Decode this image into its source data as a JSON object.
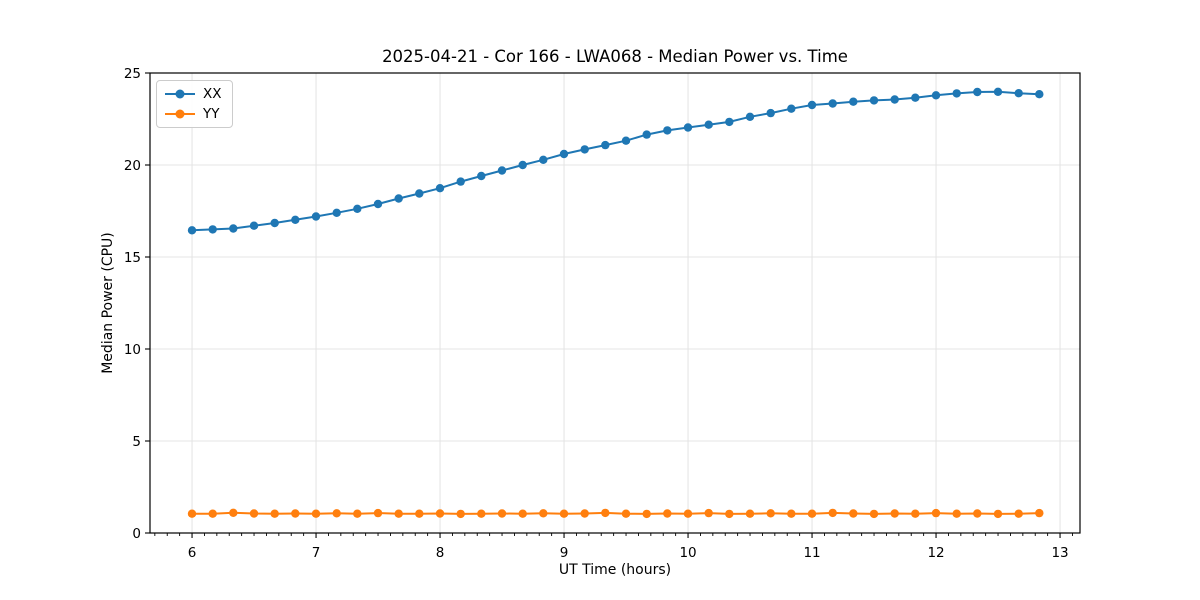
{
  "chart_data": {
    "type": "line",
    "title": "2025-04-21 - Cor 166 - LWA068 - Median Power vs. Time",
    "xlabel": "UT Time (hours)",
    "ylabel": "Median Power (CPU)",
    "xlim": [
      5.661,
      13.161
    ],
    "ylim": [
      0,
      25
    ],
    "x_major_ticks": [
      6,
      7,
      8,
      9,
      10,
      11,
      12,
      13
    ],
    "x_minor_tick_step": 0.1,
    "y_major_ticks": [
      0,
      5,
      10,
      15,
      20,
      25
    ],
    "grid": "major",
    "grid_color": "#e4e4e4",
    "legend_position": "upper-left",
    "marker": "circle",
    "x": [
      6.0,
      6.167,
      6.333,
      6.5,
      6.667,
      6.833,
      7.0,
      7.167,
      7.333,
      7.5,
      7.667,
      7.833,
      8.0,
      8.167,
      8.333,
      8.5,
      8.667,
      8.833,
      9.0,
      9.167,
      9.333,
      9.5,
      9.667,
      9.833,
      10.0,
      10.167,
      10.333,
      10.5,
      10.667,
      10.833,
      11.0,
      11.167,
      11.333,
      11.5,
      11.667,
      11.833,
      12.0,
      12.167,
      12.333,
      12.5,
      12.667,
      12.833
    ],
    "series": [
      {
        "name": "XX",
        "color": "#1f77b4",
        "values": [
          16.45,
          16.5,
          16.55,
          16.7,
          16.85,
          17.02,
          17.2,
          17.4,
          17.62,
          17.88,
          18.18,
          18.45,
          18.74,
          19.1,
          19.4,
          19.7,
          20.0,
          20.28,
          20.6,
          20.85,
          21.08,
          21.32,
          21.65,
          21.88,
          22.04,
          22.19,
          22.34,
          22.62,
          22.82,
          23.06,
          23.26,
          23.34,
          23.44,
          23.51,
          23.56,
          23.66,
          23.79,
          23.89,
          23.97,
          23.98,
          23.9,
          23.85
        ]
      },
      {
        "name": "YY",
        "color": "#ff7f0e",
        "values": [
          1.05,
          1.05,
          1.1,
          1.06,
          1.05,
          1.06,
          1.05,
          1.07,
          1.05,
          1.08,
          1.05,
          1.05,
          1.06,
          1.04,
          1.05,
          1.06,
          1.05,
          1.07,
          1.05,
          1.06,
          1.09,
          1.05,
          1.04,
          1.06,
          1.05,
          1.08,
          1.04,
          1.05,
          1.07,
          1.05,
          1.05,
          1.09,
          1.06,
          1.04,
          1.06,
          1.05,
          1.08,
          1.05,
          1.06,
          1.04,
          1.05,
          1.08
        ]
      }
    ]
  }
}
